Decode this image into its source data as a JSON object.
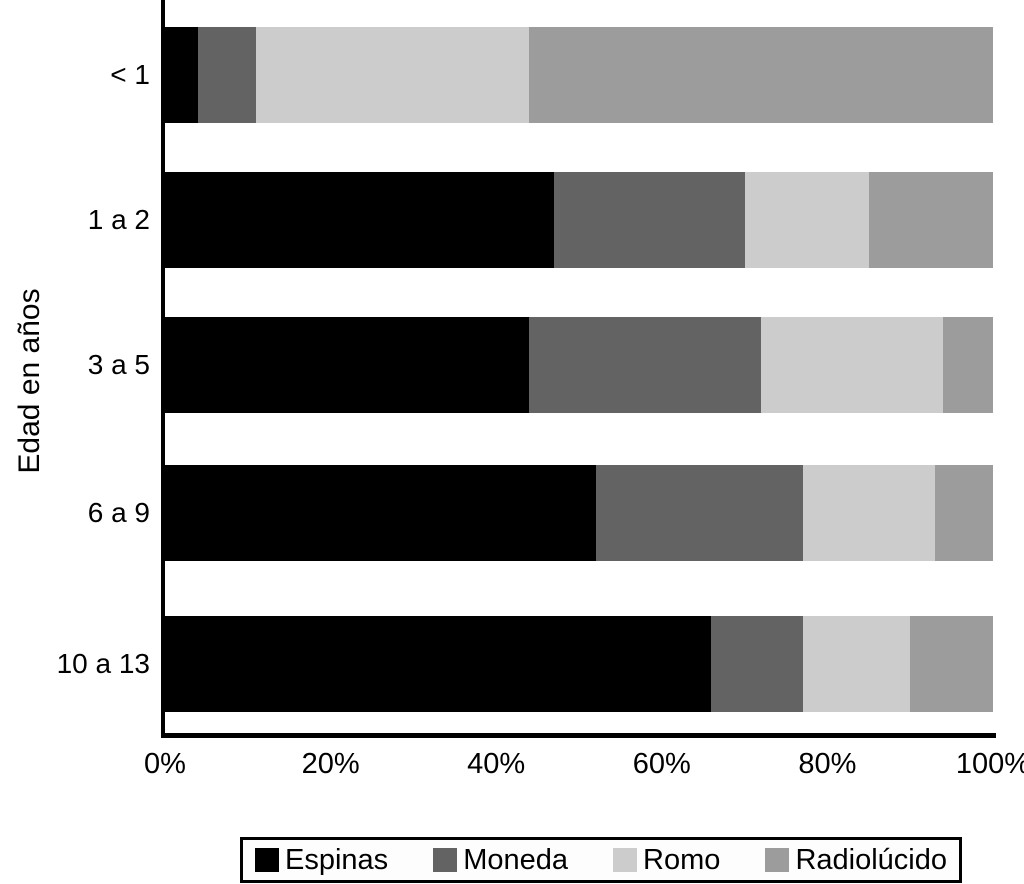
{
  "chart_data": {
    "type": "bar",
    "orientation": "horizontal",
    "stacked": true,
    "title": "",
    "ylabel": "Edad en años",
    "xlabel": "",
    "xlim": [
      0,
      100
    ],
    "grid": false,
    "legend_position": "bottom",
    "categories": [
      "< 1",
      "1 a 2",
      "3 a 5",
      "6 a 9",
      "10 a 13"
    ],
    "x_ticks": [
      "0%",
      "20%",
      "40%",
      "60%",
      "80%",
      "100%"
    ],
    "series": [
      {
        "name": "Espinas",
        "color": "#000000",
        "values": [
          4,
          47,
          44,
          52,
          66
        ]
      },
      {
        "name": "Moneda",
        "color": "#636363",
        "values": [
          7,
          23,
          28,
          25,
          11
        ]
      },
      {
        "name": "Romo",
        "color": "#cccccc",
        "values": [
          33,
          15,
          22,
          16,
          13
        ]
      },
      {
        "name": "Radiolúcido",
        "color": "#9c9c9c",
        "values": [
          56,
          15,
          6,
          7,
          10
        ]
      }
    ]
  }
}
